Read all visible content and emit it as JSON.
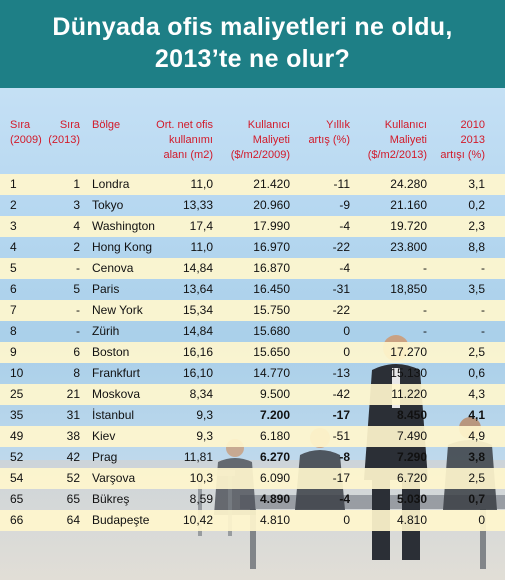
{
  "title": {
    "line1": "Dünyada ofis maliyetleri ne oldu,",
    "line2": "2013’te ne olur?"
  },
  "headers": [
    {
      "key": "rank2009",
      "lines": [
        "Sıra",
        "(2009)"
      ]
    },
    {
      "key": "rank2013",
      "lines": [
        "Sıra",
        "(2013)"
      ]
    },
    {
      "key": "region",
      "lines": [
        "Bölge"
      ]
    },
    {
      "key": "area",
      "lines": [
        "Ort. net ofis",
        "kullanımı",
        "alanı (m2)"
      ]
    },
    {
      "key": "cost2009",
      "lines": [
        "Kullanıcı",
        "Maliyeti",
        "($/m2/2009)"
      ]
    },
    {
      "key": "annual",
      "lines": [
        "Yıllık",
        "artış (%)"
      ]
    },
    {
      "key": "cost2013",
      "lines": [
        "Kullanıcı",
        "Maliyeti",
        "($/m2/2013)"
      ]
    },
    {
      "key": "change",
      "lines": [
        "2010",
        "2013",
        "artışı (%)"
      ]
    }
  ],
  "rows": [
    {
      "rank2009": "1",
      "rank2013": "1",
      "region": "Londra",
      "area": "11,0",
      "cost2009": "21.420",
      "annual": "-11",
      "cost2013": "24.280",
      "change": "3,1"
    },
    {
      "rank2009": "2",
      "rank2013": "3",
      "region": "Tokyo",
      "area": "13,33",
      "cost2009": "20.960",
      "annual": "-9",
      "cost2013": "21.160",
      "change": "0,2"
    },
    {
      "rank2009": "3",
      "rank2013": "4",
      "region": "Washington",
      "area": "17,4",
      "cost2009": "17.990",
      "annual": "-4",
      "cost2013": "19.720",
      "change": "2,3"
    },
    {
      "rank2009": "4",
      "rank2013": "2",
      "region": "Hong Kong",
      "area": "11,0",
      "cost2009": "16.970",
      "annual": "-22",
      "cost2013": "23.800",
      "change": "8,8"
    },
    {
      "rank2009": "5",
      "rank2013": "-",
      "region": "Cenova",
      "area": "14,84",
      "cost2009": "16.870",
      "annual": "-4",
      "cost2013": "-",
      "change": "-"
    },
    {
      "rank2009": "6",
      "rank2013": "5",
      "region": "Paris",
      "area": "13,64",
      "cost2009": "16.450",
      "annual": "-31",
      "cost2013": "18,850",
      "change": "3,5"
    },
    {
      "rank2009": "7",
      "rank2013": "-",
      "region": "New York",
      "area": "15,34",
      "cost2009": "15.750",
      "annual": "-22",
      "cost2013": "-",
      "change": "-"
    },
    {
      "rank2009": "8",
      "rank2013": "-",
      "region": "Zürih",
      "area": "14,84",
      "cost2009": "15.680",
      "annual": "0",
      "cost2013": "-",
      "change": "-"
    },
    {
      "rank2009": "9",
      "rank2013": "6",
      "region": "Boston",
      "area": "16,16",
      "cost2009": "15.650",
      "annual": "0",
      "cost2013": "17.270",
      "change": "2,5"
    },
    {
      "rank2009": "10",
      "rank2013": "8",
      "region": "Frankfurt",
      "area": "16,10",
      "cost2009": "14.770",
      "annual": "-13",
      "cost2013": "15.130",
      "change": "0,6"
    },
    {
      "rank2009": "25",
      "rank2013": "21",
      "region": "Moskova",
      "area": "8,34",
      "cost2009": "9.500",
      "annual": "-42",
      "cost2013": "11.220",
      "change": "4,3"
    },
    {
      "rank2009": "35",
      "rank2013": "31",
      "region": "İstanbul",
      "area": "9,3",
      "cost2009": "7.200",
      "annual": "-17",
      "cost2013": "8.450",
      "change": "4,1",
      "bold": true
    },
    {
      "rank2009": "49",
      "rank2013": "38",
      "region": "Kiev",
      "area": "9,3",
      "cost2009": "6.180",
      "annual": "-51",
      "cost2013": "7.490",
      "change": "4,9"
    },
    {
      "rank2009": "52",
      "rank2013": "42",
      "region": "Prag",
      "area": "11,81",
      "cost2009": "6.270",
      "annual": "-8",
      "cost2013": "7.290",
      "change": "3,8",
      "bold": true
    },
    {
      "rank2009": "54",
      "rank2013": "52",
      "region": "Varşova",
      "area": "10,3",
      "cost2009": "6.090",
      "annual": "-17",
      "cost2013": "6.720",
      "change": "2,5"
    },
    {
      "rank2009": "65",
      "rank2013": "65",
      "region": "Bükreş",
      "area": "8,59",
      "cost2009": "4.890",
      "annual": "-4",
      "cost2013": "5.030",
      "change": "0,7",
      "bold": true
    },
    {
      "rank2009": "66",
      "rank2013": "64",
      "region": "Budapeşte",
      "area": "10,42",
      "cost2009": "4.810",
      "annual": "0",
      "cost2013": "4.810",
      "change": "0"
    }
  ]
}
